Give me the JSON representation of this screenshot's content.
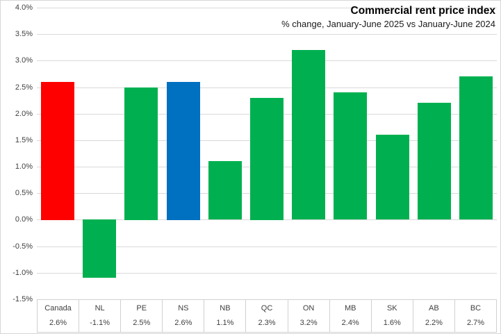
{
  "header": {
    "title": "Commercial rent price index",
    "subtitle": "% change, January-June 2025 vs January-June 2024"
  },
  "colors": {
    "highlight_red": "#FF0000",
    "highlight_blue": "#0070C0",
    "default_green": "#00B050",
    "gridline": "#D9D9D9",
    "table_border": "#D0D0D0",
    "axis_text": "#404040"
  },
  "chart_data": {
    "type": "bar",
    "title": "Commercial rent price index",
    "subtitle": "% change, January-June 2025 vs January-June 2024",
    "categories": [
      "Canada",
      "NL",
      "PE",
      "NS",
      "NB",
      "QC",
      "ON",
      "MB",
      "SK",
      "AB",
      "BC"
    ],
    "values": [
      2.6,
      -1.1,
      2.5,
      2.6,
      1.1,
      2.3,
      3.2,
      2.4,
      1.6,
      2.2,
      2.7
    ],
    "value_labels": [
      "2.6%",
      "-1.1%",
      "2.5%",
      "2.6%",
      "1.1%",
      "2.3%",
      "3.2%",
      "2.4%",
      "1.6%",
      "2.2%",
      "2.7%"
    ],
    "bar_colors": [
      "#FF0000",
      "#00B050",
      "#00B050",
      "#0070C0",
      "#00B050",
      "#00B050",
      "#00B050",
      "#00B050",
      "#00B050",
      "#00B050",
      "#00B050"
    ],
    "xlabel": "",
    "ylabel": "",
    "ylim": [
      -1.5,
      4.0
    ],
    "ytick_step": 0.5,
    "y_ticks": [
      "4.0%",
      "3.5%",
      "3.0%",
      "2.5%",
      "2.0%",
      "1.5%",
      "1.0%",
      "0.5%",
      "0.0%",
      "-0.5%",
      "-1.0%",
      "-1.5%"
    ],
    "grid": true,
    "legend": false,
    "data_table_shown": true
  }
}
